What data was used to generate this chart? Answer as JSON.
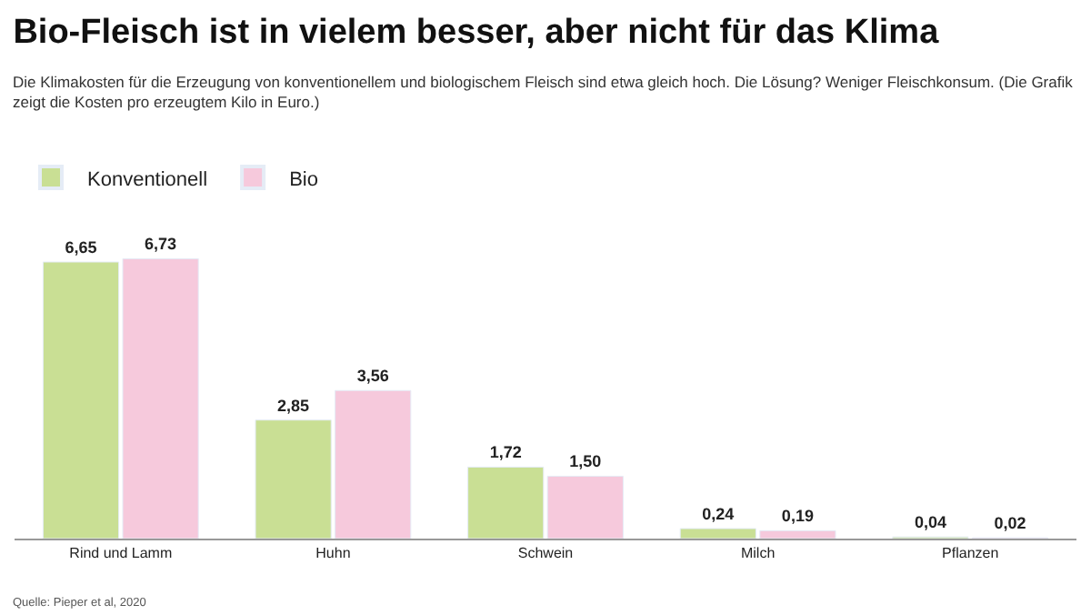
{
  "chart_data": {
    "type": "bar",
    "title": "Bio-Fleisch ist in vielem besser, aber nicht für das Klima",
    "subtitle": "Die Klimakosten für die Erzeugung von konventionellem und biologischem Fleisch sind etwa gleich hoch. Die Lösung? Weniger Fleischkonsum. (Die Grafik zeigt die Kosten pro erzeugtem Kilo in Euro.)",
    "categories": [
      "Rind und Lamm",
      "Huhn",
      "Schwein",
      "Milch",
      "Pflanzen"
    ],
    "series": [
      {
        "name": "Konventionell",
        "color": "#c9df94",
        "values": [
          6.65,
          2.85,
          1.72,
          0.24,
          0.04
        ],
        "value_labels": [
          "6,65",
          "2,85",
          "1,72",
          "0,24",
          "0,04"
        ]
      },
      {
        "name": "Bio",
        "color": "#f6c9dc",
        "values": [
          6.73,
          3.56,
          1.5,
          0.19,
          0.02
        ],
        "value_labels": [
          "6,73",
          "3,56",
          "1,50",
          "0,19",
          "0,02"
        ]
      }
    ],
    "legend": "top left",
    "annotations": [
      "Quelle: Pieper et al, 2020"
    ]
  }
}
